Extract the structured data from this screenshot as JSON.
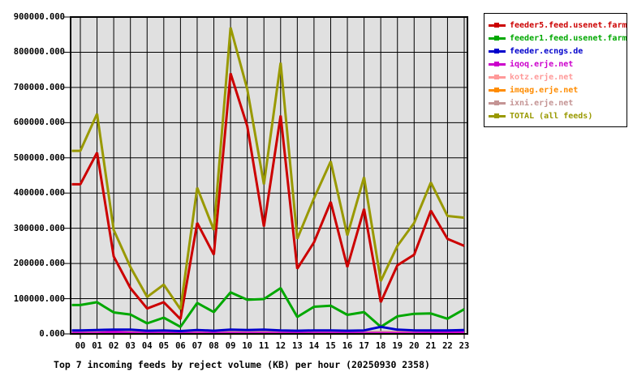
{
  "chart_data": {
    "type": "line",
    "title": "Top 7 incoming feeds by reject volume (KB) per hour (20250930 2358)",
    "xlabel": "",
    "ylabel": "",
    "x": [
      "00",
      "01",
      "02",
      "03",
      "04",
      "05",
      "06",
      "07",
      "08",
      "09",
      "10",
      "11",
      "12",
      "13",
      "14",
      "15",
      "16",
      "17",
      "18",
      "19",
      "20",
      "21",
      "22",
      "23"
    ],
    "ylim": [
      0,
      900000
    ],
    "y_tick_step": 100000,
    "y_tick_labels": [
      "0.000",
      "100000.000",
      "200000.000",
      "300000.000",
      "400000.000",
      "500000.000",
      "600000.000",
      "700000.000",
      "800000.000",
      "900000.000"
    ],
    "grid": true,
    "plot_bg": "#e0e0e0",
    "grid_color": "#000000",
    "legend_position": "outside-top-right",
    "draw_order": [
      5,
      6,
      4,
      3,
      0,
      1,
      2,
      7
    ],
    "series": [
      {
        "name": "feeder5.feed.usenet.farm",
        "color": "#cc0000",
        "values": [
          425000,
          515000,
          220000,
          130000,
          72000,
          90000,
          42000,
          315000,
          225000,
          740000,
          590000,
          305000,
          620000,
          185000,
          260000,
          375000,
          190000,
          355000,
          90000,
          195000,
          225000,
          350000,
          270000,
          250000
        ]
      },
      {
        "name": "feeder1.feed.usenet.farm",
        "color": "#00a800",
        "values": [
          82000,
          90000,
          61000,
          55000,
          30000,
          46000,
          20000,
          88000,
          62000,
          118000,
          97000,
          99000,
          130000,
          48000,
          77000,
          80000,
          54000,
          62000,
          20000,
          50000,
          57000,
          58000,
          43000,
          70000
        ]
      },
      {
        "name": "feeder.ecngs.de",
        "color": "#0000cc",
        "values": [
          10000,
          11000,
          12000,
          12000,
          9000,
          10000,
          8000,
          11000,
          9000,
          12000,
          11000,
          12000,
          10000,
          9000,
          10000,
          10000,
          9000,
          10000,
          20000,
          12000,
          10000,
          10000,
          10000,
          11000
        ]
      },
      {
        "name": "iqoq.erje.net",
        "color": "#cc00cc",
        "values": [
          2000,
          2000,
          6000,
          3000,
          2000,
          2000,
          2000,
          2000,
          2000,
          2000,
          2000,
          2000,
          2000,
          2000,
          2000,
          2000,
          2000,
          2000,
          2000,
          2000,
          2000,
          3000,
          5000,
          5000
        ]
      },
      {
        "name": "kotz.erje.net",
        "color": "#ff9999",
        "values": [
          3000,
          3000,
          3000,
          3000,
          3000,
          3000,
          3000,
          3000,
          3000,
          3000,
          3000,
          3000,
          3000,
          3000,
          3000,
          3000,
          3000,
          3000,
          3000,
          4000,
          5000,
          6000,
          6000,
          6000
        ]
      },
      {
        "name": "imqag.erje.net",
        "color": "#ff8c00",
        "values": [
          1000,
          1000,
          1000,
          1000,
          1000,
          1000,
          1000,
          1000,
          1000,
          1000,
          1000,
          1000,
          2000,
          2000,
          1000,
          1000,
          1000,
          1000,
          1000,
          1000,
          1000,
          1000,
          1000,
          1000
        ]
      },
      {
        "name": "ixni.erje.net",
        "color": "#c49494",
        "values": [
          5000,
          5000,
          5000,
          5000,
          5000,
          5000,
          5000,
          5000,
          5000,
          5000,
          5000,
          5000,
          5000,
          5000,
          5000,
          5000,
          5000,
          5000,
          5000,
          5000,
          5000,
          5000,
          5000,
          5000
        ]
      },
      {
        "name": "TOTAL (all feeds)",
        "color": "#999900",
        "values": [
          520000,
          625000,
          295000,
          190000,
          105000,
          140000,
          70000,
          415000,
          295000,
          870000,
          695000,
          425000,
          770000,
          270000,
          385000,
          490000,
          280000,
          445000,
          150000,
          250000,
          315000,
          430000,
          335000,
          330000
        ]
      }
    ]
  }
}
